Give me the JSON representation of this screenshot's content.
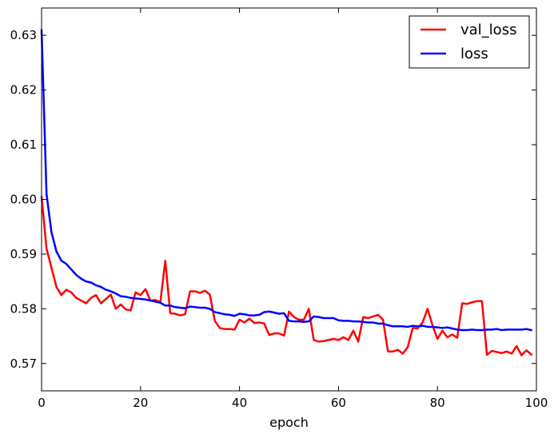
{
  "chart_data": {
    "type": "line",
    "title": "",
    "xlabel": "epoch",
    "ylabel": "",
    "xlim": [
      0,
      100
    ],
    "ylim": [
      0.565,
      0.635
    ],
    "xticks": [
      0,
      20,
      40,
      60,
      80,
      100
    ],
    "yticks": [
      0.57,
      0.58,
      0.59,
      0.6,
      0.61,
      0.62,
      0.63
    ],
    "xtick_labels": [
      "0",
      "20",
      "40",
      "60",
      "80",
      "100"
    ],
    "ytick_labels": [
      "0.57",
      "0.58",
      "0.59",
      "0.60",
      "0.61",
      "0.62",
      "0.63"
    ],
    "grid": false,
    "legend_position": "top-right",
    "x": [
      0,
      1,
      2,
      3,
      4,
      5,
      6,
      7,
      8,
      9,
      10,
      11,
      12,
      13,
      14,
      15,
      16,
      17,
      18,
      19,
      20,
      21,
      22,
      23,
      24,
      25,
      26,
      27,
      28,
      29,
      30,
      31,
      32,
      33,
      34,
      35,
      36,
      37,
      38,
      39,
      40,
      41,
      42,
      43,
      44,
      45,
      46,
      47,
      48,
      49,
      50,
      51,
      52,
      53,
      54,
      55,
      56,
      57,
      58,
      59,
      60,
      61,
      62,
      63,
      64,
      65,
      66,
      67,
      68,
      69,
      70,
      71,
      72,
      73,
      74,
      75,
      76,
      77,
      78,
      79,
      80,
      81,
      82,
      83,
      84,
      85,
      86,
      87,
      88,
      89,
      90,
      91,
      92,
      93,
      94,
      95,
      96,
      97,
      98,
      99
    ],
    "series": [
      {
        "name": "val_loss",
        "color": "#ff0000",
        "values": [
          0.6005,
          0.591,
          0.5875,
          0.584,
          0.5825,
          0.5835,
          0.583,
          0.582,
          0.5815,
          0.581,
          0.582,
          0.5825,
          0.581,
          0.5818,
          0.5826,
          0.58,
          0.5808,
          0.5799,
          0.5797,
          0.583,
          0.5825,
          0.5836,
          0.5815,
          0.5816,
          0.5812,
          0.5888,
          0.5792,
          0.5791,
          0.5788,
          0.579,
          0.5832,
          0.5832,
          0.5829,
          0.5833,
          0.5826,
          0.5778,
          0.5765,
          0.5763,
          0.5763,
          0.5762,
          0.578,
          0.5775,
          0.5782,
          0.5774,
          0.5775,
          0.5773,
          0.5752,
          0.5755,
          0.5755,
          0.5751,
          0.5795,
          0.5785,
          0.578,
          0.578,
          0.58,
          0.5743,
          0.574,
          0.5741,
          0.5743,
          0.5745,
          0.5743,
          0.5748,
          0.5743,
          0.576,
          0.574,
          0.5785,
          0.5783,
          0.5786,
          0.5789,
          0.578,
          0.5722,
          0.5722,
          0.5725,
          0.5718,
          0.573,
          0.5765,
          0.5764,
          0.5775,
          0.58,
          0.577,
          0.5745,
          0.576,
          0.5748,
          0.5753,
          0.5747,
          0.581,
          0.5809,
          0.5812,
          0.5814,
          0.5814,
          0.5716,
          0.5723,
          0.5721,
          0.5719,
          0.5722,
          0.5718,
          0.5732,
          0.5715,
          0.5724,
          0.5716
        ]
      },
      {
        "name": "loss",
        "color": "#0000ff",
        "values": [
          0.631,
          0.601,
          0.594,
          0.5905,
          0.5888,
          0.5882,
          0.5872,
          0.5862,
          0.5855,
          0.585,
          0.5848,
          0.5843,
          0.584,
          0.5835,
          0.5832,
          0.5828,
          0.5823,
          0.5822,
          0.582,
          0.5819,
          0.5818,
          0.5817,
          0.5815,
          0.5813,
          0.5811,
          0.5806,
          0.5806,
          0.5803,
          0.5802,
          0.5801,
          0.5804,
          0.5803,
          0.5802,
          0.5802,
          0.58,
          0.5794,
          0.5792,
          0.579,
          0.5789,
          0.5787,
          0.5791,
          0.579,
          0.5788,
          0.5788,
          0.5789,
          0.5794,
          0.5795,
          0.5793,
          0.5791,
          0.5792,
          0.5778,
          0.5777,
          0.5777,
          0.5776,
          0.5777,
          0.5786,
          0.5785,
          0.5783,
          0.5783,
          0.5783,
          0.5779,
          0.5778,
          0.5778,
          0.5777,
          0.5777,
          0.5776,
          0.5775,
          0.5775,
          0.5773,
          0.5773,
          0.577,
          0.5768,
          0.5768,
          0.5768,
          0.5767,
          0.5769,
          0.5768,
          0.5769,
          0.5767,
          0.5767,
          0.5766,
          0.5765,
          0.5766,
          0.5764,
          0.5762,
          0.5761,
          0.5761,
          0.5762,
          0.5761,
          0.5761,
          0.5762,
          0.5762,
          0.5763,
          0.5761,
          0.5762,
          0.5762,
          0.5762,
          0.5762,
          0.5763,
          0.5761
        ]
      }
    ]
  }
}
